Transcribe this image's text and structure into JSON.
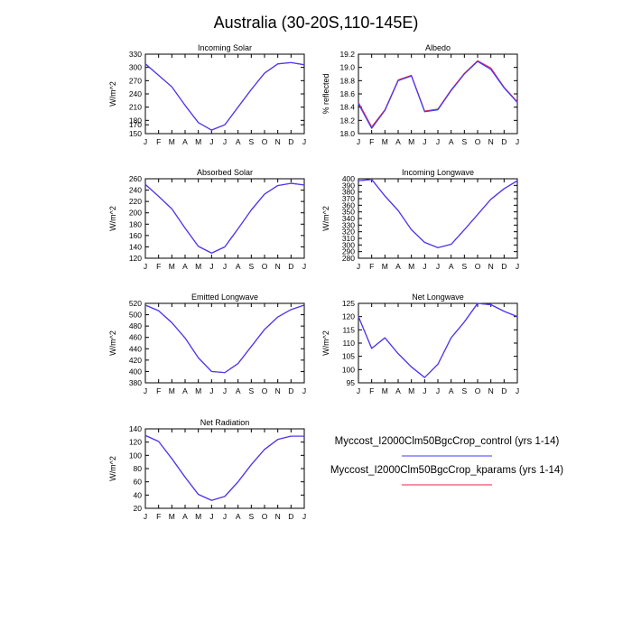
{
  "title": "Australia (30-20S,110-145E)",
  "months": [
    "J",
    "F",
    "M",
    "A",
    "M",
    "J",
    "J",
    "A",
    "S",
    "O",
    "N",
    "D",
    "J"
  ],
  "legend": [
    {
      "label": "Myccost_I2000Clm50BgcCrop_control (yrs 1-14)",
      "color": "#3b3bff"
    },
    {
      "label": "Myccost_I2000Clm50BgcCrop_kparams (yrs 1-14)",
      "color": "#ee2244"
    }
  ],
  "chart_data": [
    {
      "type": "line",
      "title": "Incoming Solar",
      "ylabel": "W/m^2",
      "ylim": [
        150,
        330
      ],
      "yticks": [
        150,
        170,
        180,
        210,
        240,
        270,
        300,
        330
      ],
      "yticklabels": [
        "150",
        "170",
        "180",
        "210",
        "240",
        "270",
        "300",
        "330"
      ],
      "series": [
        {
          "values": [
            308,
            282,
            256,
            214,
            175,
            158,
            170,
            210,
            250,
            287,
            308,
            311,
            306
          ]
        },
        {
          "values": [
            308,
            282,
            256,
            214,
            175,
            158,
            170,
            210,
            250,
            287,
            308,
            311,
            306
          ]
        }
      ]
    },
    {
      "type": "line",
      "title": "Albedo",
      "ylabel": "% reflected",
      "ylim": [
        18.0,
        19.2
      ],
      "yticks": [
        18.0,
        18.2,
        18.4,
        18.6,
        18.8,
        19.0,
        19.2
      ],
      "yticklabels": [
        "18.0",
        "18.2",
        "18.4",
        "18.6",
        "18.8",
        "19.0",
        "19.2"
      ],
      "series": [
        {
          "values": [
            18.45,
            18.08,
            18.35,
            18.8,
            18.87,
            18.33,
            18.36,
            18.65,
            18.9,
            19.09,
            18.97,
            18.69,
            18.47
          ]
        },
        {
          "values": [
            18.47,
            18.1,
            18.36,
            18.81,
            18.88,
            18.34,
            18.37,
            18.66,
            18.91,
            19.1,
            18.99,
            18.7,
            18.48
          ]
        }
      ]
    },
    {
      "type": "line",
      "title": "Absorbed Solar",
      "ylabel": "W/m^2",
      "ylim": [
        120,
        260
      ],
      "yticks": [
        120,
        140,
        160,
        180,
        200,
        220,
        240,
        260
      ],
      "yticklabels": [
        "120",
        "140",
        "160",
        "180",
        "200",
        "220",
        "240",
        "260"
      ],
      "series": [
        {
          "values": [
            250,
            229,
            207,
            173,
            141,
            129,
            140,
            172,
            205,
            233,
            248,
            252,
            249
          ]
        },
        {
          "values": [
            250,
            229,
            207,
            173,
            141,
            129,
            140,
            172,
            205,
            233,
            248,
            252,
            249
          ]
        }
      ]
    },
    {
      "type": "line",
      "title": "Incoming Longwave",
      "ylabel": "W/m^2",
      "ylim": [
        280,
        400
      ],
      "yticks": [
        280,
        290,
        300,
        310,
        320,
        330,
        340,
        350,
        360,
        370,
        380,
        390,
        400
      ],
      "yticklabels": [
        "280",
        "290",
        "300",
        "310",
        "320",
        "330",
        "340",
        "350",
        "360",
        "370",
        "380",
        "390",
        "400"
      ],
      "series": [
        {
          "values": [
            397,
            399,
            374,
            352,
            323,
            304,
            296,
            301,
            323,
            346,
            369,
            385,
            397
          ]
        },
        {
          "values": [
            397,
            399,
            374,
            352,
            323,
            304,
            296,
            301,
            323,
            346,
            369,
            385,
            397
          ]
        }
      ]
    },
    {
      "type": "line",
      "title": "Emitted Longwave",
      "ylabel": "W/m^2",
      "ylim": [
        380,
        520
      ],
      "yticks": [
        380,
        400,
        420,
        440,
        460,
        480,
        500,
        520
      ],
      "yticklabels": [
        "380",
        "400",
        "420",
        "440",
        "460",
        "480",
        "500",
        "520"
      ],
      "series": [
        {
          "values": [
            517,
            507,
            486,
            459,
            424,
            400,
            398,
            414,
            444,
            474,
            496,
            509,
            517
          ]
        },
        {
          "values": [
            517,
            507,
            486,
            459,
            424,
            400,
            398,
            414,
            444,
            474,
            496,
            509,
            517
          ]
        }
      ]
    },
    {
      "type": "line",
      "title": "Net Longwave",
      "ylabel": "W/m^2",
      "ylim": [
        95,
        125
      ],
      "yticks": [
        95,
        100,
        105,
        110,
        115,
        120,
        125
      ],
      "yticklabels": [
        "95",
        "100",
        "105",
        "110",
        "115",
        "120",
        "125"
      ],
      "series": [
        {
          "values": [
            120,
            108,
            112,
            106,
            101,
            97,
            102,
            112,
            118,
            125,
            124.5,
            122,
            120
          ]
        },
        {
          "values": [
            120,
            108,
            112,
            106,
            101,
            97,
            102,
            112,
            118,
            125,
            124.5,
            122,
            120
          ]
        }
      ]
    },
    {
      "type": "line",
      "title": "Net Radiation",
      "ylabel": "W/m^2",
      "ylim": [
        20,
        140
      ],
      "yticks": [
        20,
        40,
        60,
        80,
        100,
        120,
        140
      ],
      "yticklabels": [
        "20",
        "40",
        "60",
        "80",
        "100",
        "120",
        "140"
      ],
      "series": [
        {
          "values": [
            130,
            121,
            95,
            67,
            41,
            32,
            38,
            60,
            86,
            109,
            124,
            129,
            129
          ]
        },
        {
          "values": [
            130,
            121,
            95,
            67,
            41,
            32,
            38,
            60,
            86,
            109,
            124,
            129,
            129
          ]
        }
      ]
    }
  ]
}
